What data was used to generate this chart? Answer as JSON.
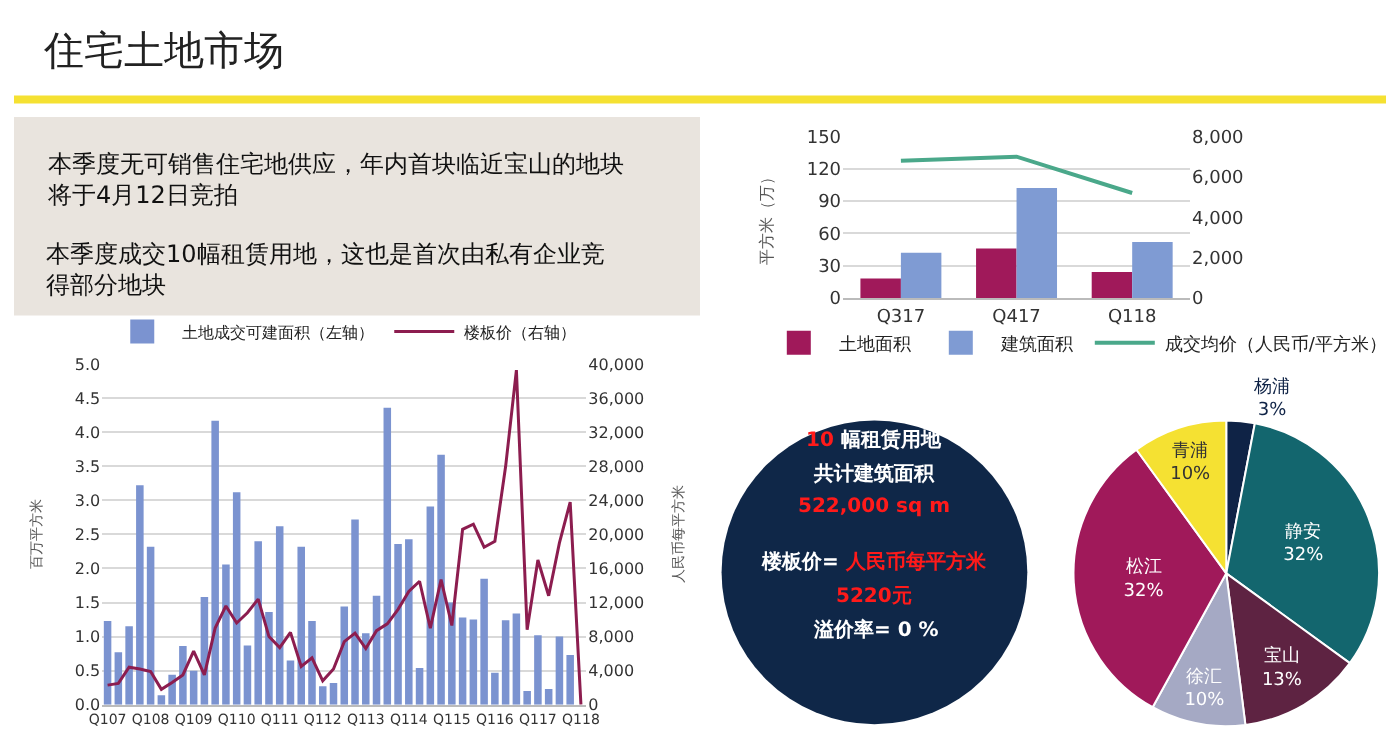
{
  "chart_data": [
    {
      "type": "other",
      "title": "住宅土地市场",
      "annotations": [
        "本季度无可销售住宅地供应，年内首块临近宝山的地块将于4月12日竞拍",
        "本季度成交10幅租赁用地，这也是首次由私有企业竞得部分地块"
      ]
    },
    {
      "type": "bar",
      "categories": [
        "Q107",
        null,
        null,
        null,
        "Q108",
        null,
        null,
        null,
        "Q109",
        null,
        null,
        null,
        "Q110",
        null,
        null,
        null,
        "Q111",
        null,
        null,
        null,
        "Q112",
        null,
        null,
        null,
        "Q113",
        null,
        null,
        null,
        "Q114",
        null,
        null,
        null,
        "Q115",
        null,
        null,
        null,
        "Q116",
        null,
        null,
        null,
        "Q117",
        null,
        null,
        null,
        "Q118"
      ],
      "series": [
        {
          "name": "土地成交可建面积（左轴）",
          "color": "#7b93d0",
          "values": [
            1.23,
            0.77,
            1.15,
            3.22,
            2.32,
            0.14,
            0.44,
            0.86,
            0.5,
            1.58,
            4.17,
            2.06,
            3.12,
            0.87,
            2.4,
            1.36,
            2.62,
            0.65,
            2.32,
            1.23,
            0.27,
            0.32,
            1.44,
            2.72,
            1.05,
            1.6,
            4.36,
            2.36,
            2.43,
            0.54,
            2.91,
            3.67,
            1.5,
            1.28,
            1.25,
            1.85,
            0.47,
            1.24,
            1.34,
            0.2,
            1.02,
            0.23,
            1.0,
            0.73,
            null
          ]
        },
        {
          "name": "楼板价（右轴）",
          "type": "line",
          "axis": "y2",
          "color": "#8c1d4f",
          "values": [
            2300,
            2500,
            4400,
            4200,
            3900,
            1800,
            2600,
            3500,
            6300,
            3500,
            9000,
            11600,
            9600,
            10800,
            12400,
            8000,
            6700,
            8500,
            4500,
            5500,
            2800,
            4200,
            7400,
            8400,
            6600,
            8700,
            9500,
            11200,
            13300,
            14500,
            9000,
            14700,
            9300,
            20600,
            21200,
            18500,
            19200,
            28000,
            39300,
            8800,
            17000,
            12800,
            19000,
            23800,
            0
          ]
        }
      ],
      "ylabel": "百万平方米",
      "y2label": "人民币每平方米",
      "ylim": [
        0,
        5
      ],
      "yticks": [
        {
          "value": 0,
          "label": "0.0"
        },
        0.5,
        {
          "value": 1,
          "label": "1.0"
        },
        1.5,
        {
          "value": 2,
          "label": "2.0"
        },
        2.5,
        {
          "value": 3,
          "label": "3.0"
        },
        3.5,
        {
          "value": 4,
          "label": "4.0"
        },
        4.5,
        {
          "value": 5,
          "label": "5.0"
        }
      ],
      "y2lim": [
        0,
        40000
      ],
      "y2ticks": [
        0,
        {
          "value": 4000,
          "label": "4,000"
        },
        {
          "value": 8000,
          "label": "8,000"
        },
        {
          "value": 12000,
          "label": "12,000"
        },
        {
          "value": 16000,
          "label": "16,000"
        },
        {
          "value": 20000,
          "label": "20,000"
        },
        {
          "value": 24000,
          "label": "24,000"
        },
        {
          "value": 28000,
          "label": "28,000"
        },
        {
          "value": 32000,
          "label": "32,000"
        },
        {
          "value": 36000,
          "label": "36,000"
        },
        {
          "value": 40000,
          "label": "40,000"
        }
      ],
      "grid": "y",
      "legend": "top"
    },
    {
      "type": "bar",
      "categories": [
        "Q317",
        "Q417",
        "Q118"
      ],
      "series": [
        {
          "name": "土地面积",
          "color": "#a0195a",
          "values": [
            18,
            46,
            24
          ]
        },
        {
          "name": "建筑面积",
          "color": "#7f9bd3",
          "values": [
            42,
            102,
            52
          ]
        },
        {
          "name": "成交均价（人民币/平方米）",
          "type": "line",
          "axis": "y2",
          "color": "#4aa88a",
          "values": [
            6800,
            7000,
            5200
          ]
        }
      ],
      "ylabel": "平方米（万）",
      "ylim": [
        0,
        150
      ],
      "yticks": [
        0,
        30,
        60,
        90,
        120,
        150
      ],
      "y2lim": [
        0,
        8000
      ],
      "y2ticks": [
        0,
        {
          "value": 2000,
          "label": "2,000"
        },
        {
          "value": 4000,
          "label": "4,000"
        },
        {
          "value": 6000,
          "label": "6,000"
        },
        {
          "value": 8000,
          "label": "8,000"
        }
      ],
      "grid": "y",
      "legend": "bottom"
    },
    {
      "type": "other",
      "annotations": [
        "10",
        "幅租赁用地",
        "共计建筑面积",
        "522,000 sq m",
        "楼板价=",
        "人民币每平方米",
        "5220元",
        "溢价率= 0 %"
      ]
    },
    {
      "type": "pie",
      "categories": [
        "杨浦",
        "静安",
        "宝山",
        "徐汇",
        "松江",
        "青浦"
      ],
      "values": [
        3,
        32,
        13,
        10,
        32,
        10
      ],
      "value_labels": [
        "3%",
        "32%",
        "13%",
        "10%",
        "32%",
        "10%"
      ],
      "colors": [
        "#0f2346",
        "#13666e",
        "#5e2342",
        "#a5a9c4",
        "#a0195a",
        "#f5e132"
      ]
    }
  ]
}
